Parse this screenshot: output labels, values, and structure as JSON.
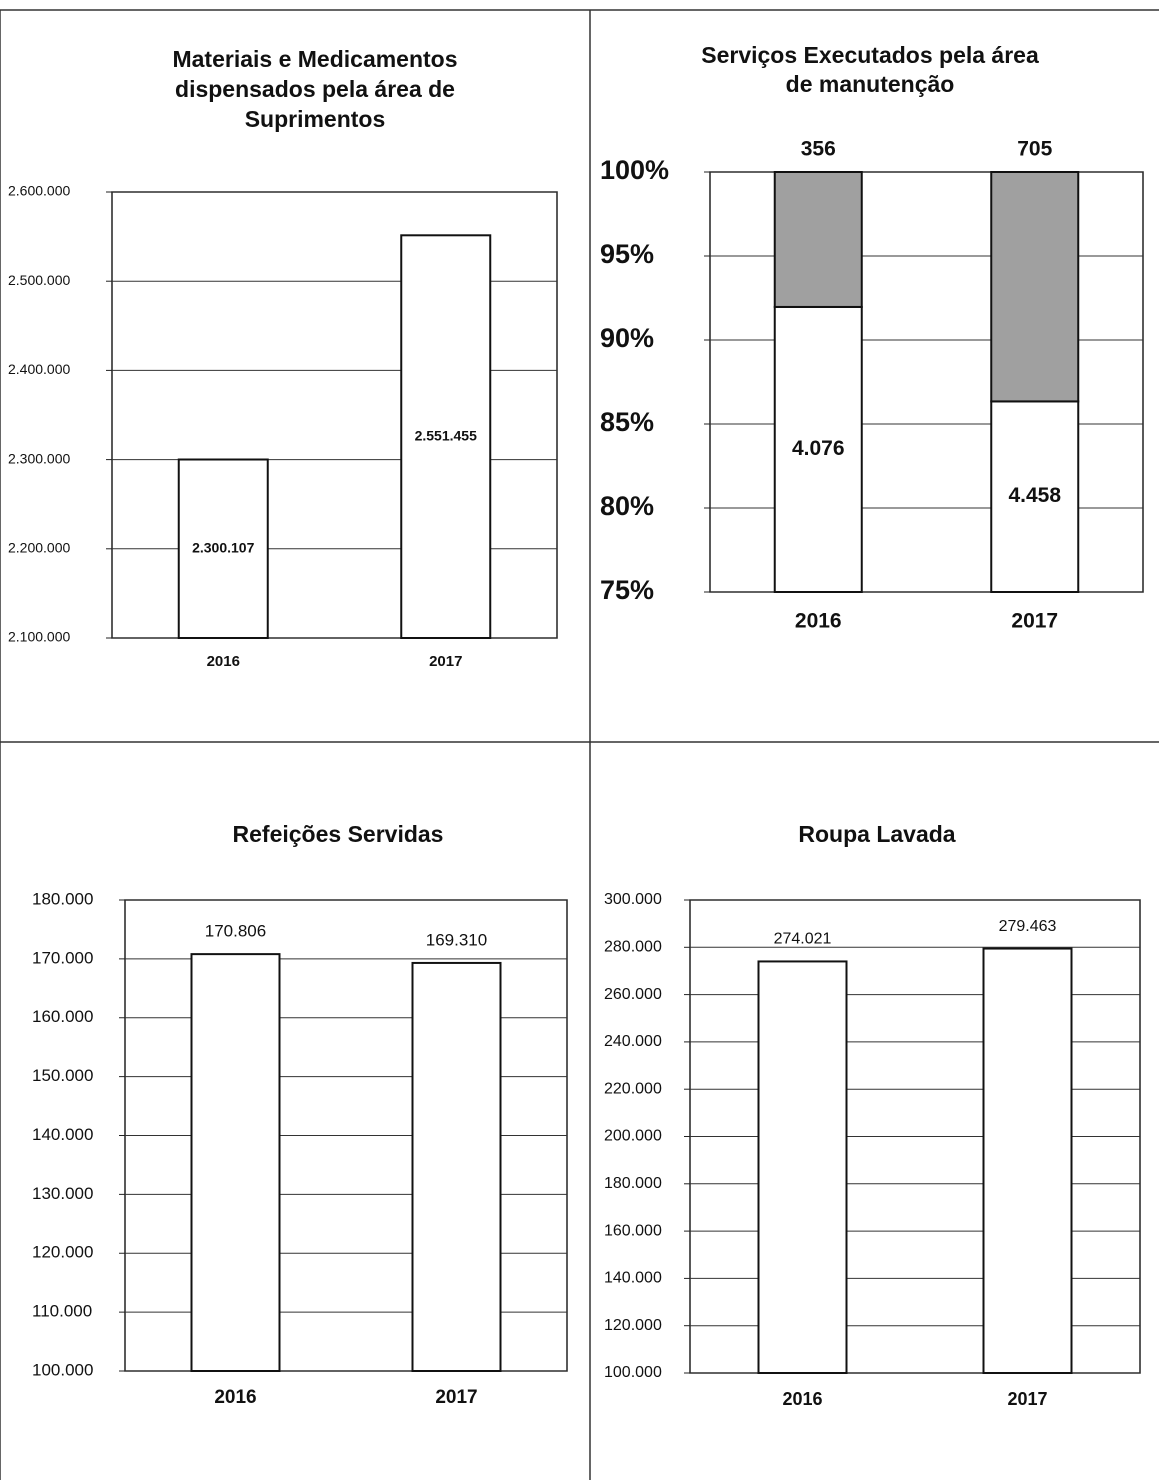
{
  "chart_data": [
    {
      "type": "bar",
      "title": [
        "Materiais e Medicamentos",
        "dispensados pela área de",
        "Suprimentos"
      ],
      "categories": [
        "2016",
        "2017"
      ],
      "values": [
        2300107,
        2551455
      ],
      "value_labels": [
        "2.300.107",
        "2.551.455"
      ],
      "label_position": "inside",
      "color": "#ffffff",
      "ylim": [
        2100000,
        2600000
      ],
      "yticks": [
        {
          "value": 2100000,
          "label": "2.100.000"
        },
        {
          "value": 2200000,
          "label": "2.200.000"
        },
        {
          "value": 2300000,
          "label": "2.300.000"
        },
        {
          "value": 2400000,
          "label": "2.400.000"
        },
        {
          "value": 2500000,
          "label": "2.500.000"
        },
        {
          "value": 2600000,
          "label": "2.600.000"
        }
      ],
      "grid": true
    },
    {
      "type": "stacked_percent_bar",
      "title": [
        "Serviços Executados pela área",
        "de manutenção"
      ],
      "categories": [
        "2016",
        "2017"
      ],
      "series": [
        {
          "color": "#ffffff",
          "values": [
            4076,
            4458
          ],
          "value_labels": [
            "4.076",
            "4.458"
          ]
        },
        {
          "color": "#a0a0a0",
          "values": [
            356,
            705
          ]
        }
      ],
      "ylim": [
        75,
        100
      ],
      "yticks": [
        {
          "value": 75,
          "label": "75%"
        },
        {
          "value": 80,
          "label": "80%"
        },
        {
          "value": 85,
          "label": "85%"
        },
        {
          "value": 90,
          "label": "90%"
        },
        {
          "value": 95,
          "label": "95%"
        },
        {
          "value": 100,
          "label": "100%"
        }
      ],
      "grid": true
    },
    {
      "type": "bar",
      "title": [
        "Refeições Servidas"
      ],
      "categories": [
        "2016",
        "2017"
      ],
      "values": [
        170806,
        169310
      ],
      "value_labels": [
        "170.806",
        "169.310"
      ],
      "label_position": "above",
      "color": "#ffffff",
      "ylim": [
        100000,
        180000
      ],
      "yticks": [
        {
          "value": 100000,
          "label": "100.000"
        },
        {
          "value": 110000,
          "label": "110.000"
        },
        {
          "value": 120000,
          "label": "120.000"
        },
        {
          "value": 130000,
          "label": "130.000"
        },
        {
          "value": 140000,
          "label": "140.000"
        },
        {
          "value": 150000,
          "label": "150.000"
        },
        {
          "value": 160000,
          "label": "160.000"
        },
        {
          "value": 170000,
          "label": "170.000"
        },
        {
          "value": 180000,
          "label": "180.000"
        }
      ],
      "grid": true
    },
    {
      "type": "bar",
      "title": [
        "Roupa Lavada"
      ],
      "categories": [
        "2016",
        "2017"
      ],
      "values": [
        274021,
        279463
      ],
      "value_labels": [
        "274.021",
        "279.463"
      ],
      "label_position": "above",
      "color": "#ffffff",
      "ylim": [
        100000,
        300000
      ],
      "yticks": [
        {
          "value": 100000,
          "label": "100.000"
        },
        {
          "value": 120000,
          "label": "120.000"
        },
        {
          "value": 140000,
          "label": "140.000"
        },
        {
          "value": 160000,
          "label": "160.000"
        },
        {
          "value": 180000,
          "label": "180.000"
        },
        {
          "value": 200000,
          "label": "200.000"
        },
        {
          "value": 220000,
          "label": "220.000"
        },
        {
          "value": 240000,
          "label": "240.000"
        },
        {
          "value": 260000,
          "label": "260.000"
        },
        {
          "value": 280000,
          "label": "280.000"
        },
        {
          "value": 300000,
          "label": "300.000"
        }
      ],
      "grid": true
    }
  ]
}
